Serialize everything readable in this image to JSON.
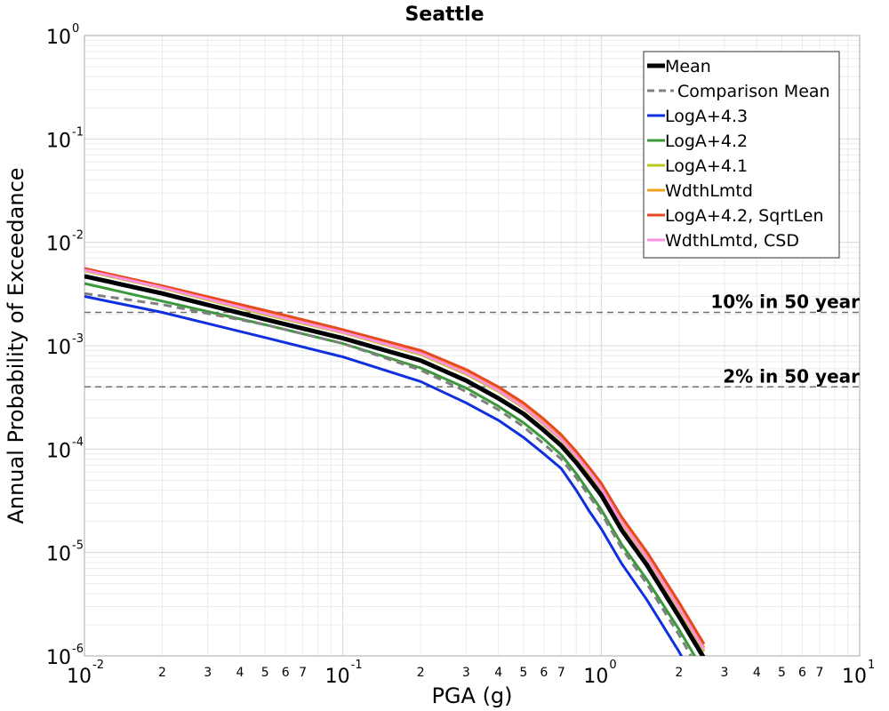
{
  "chart_data": {
    "type": "line",
    "title": "Seattle",
    "xlabel": "PGA (g)",
    "ylabel": "Annual Probability of Exceedance",
    "xscale": "log",
    "yscale": "log",
    "xlim": [
      0.01,
      10
    ],
    "ylim": [
      1e-06,
      1
    ],
    "grid": true,
    "legend_position": "top-right",
    "x_ticks": [
      {
        "base": "10",
        "exp": "-2"
      },
      {
        "base": "10",
        "exp": "-1"
      },
      {
        "base": "10",
        "exp": "0"
      },
      {
        "base": "10",
        "exp": "1"
      }
    ],
    "x_minor_labels": [
      "2",
      "3",
      "4",
      "5",
      "6",
      "7"
    ],
    "y_ticks": [
      {
        "base": "10",
        "exp": "0"
      },
      {
        "base": "10",
        "exp": "-1"
      },
      {
        "base": "10",
        "exp": "-2"
      },
      {
        "base": "10",
        "exp": "-3"
      },
      {
        "base": "10",
        "exp": "-4"
      },
      {
        "base": "10",
        "exp": "-5"
      },
      {
        "base": "10",
        "exp": "-6"
      }
    ],
    "reference_lines": [
      {
        "label": "10% in 50 year",
        "y": 0.0021
      },
      {
        "label": "2% in 50 year",
        "y": 0.0004
      }
    ],
    "series": [
      {
        "name": "LogA+4.3",
        "color": "#1030e0",
        "dashed": false,
        "width": 3,
        "x": [
          0.01,
          0.02,
          0.05,
          0.1,
          0.2,
          0.3,
          0.4,
          0.5,
          0.6,
          0.7,
          0.8,
          0.9,
          1.0,
          1.2,
          1.5,
          2.0,
          2.5
        ],
        "y": [
          0.003,
          0.0021,
          0.0012,
          0.00078,
          0.00045,
          0.00028,
          0.00019,
          0.00013,
          9e-05,
          6.5e-05,
          4e-05,
          2.5e-05,
          1.7e-05,
          7.8e-06,
          3.5e-06,
          1.1e-06,
          4e-07
        ]
      },
      {
        "name": "LogA+4.2",
        "color": "#3a9a3a",
        "dashed": false,
        "width": 3,
        "x": [
          0.01,
          0.02,
          0.05,
          0.1,
          0.2,
          0.3,
          0.4,
          0.5,
          0.6,
          0.7,
          0.8,
          0.9,
          1.0,
          1.2,
          1.5,
          2.0,
          2.5
        ],
        "y": [
          0.004,
          0.0027,
          0.0016,
          0.00105,
          0.00061,
          0.00039,
          0.00026,
          0.00018,
          0.000125,
          8.8e-05,
          5.8e-05,
          3.8e-05,
          2.6e-05,
          1.2e-05,
          5.5e-06,
          1.8e-06,
          7e-07
        ]
      },
      {
        "name": "LogA+4.1",
        "color": "#b8c820",
        "dashed": false,
        "width": 3,
        "x": [
          0.01,
          0.02,
          0.05,
          0.1,
          0.2,
          0.3,
          0.4,
          0.5,
          0.6,
          0.7,
          0.8,
          0.9,
          1.0,
          1.2,
          1.5,
          2.0,
          2.5
        ],
        "y": [
          0.0053,
          0.0036,
          0.002,
          0.00133,
          0.00082,
          0.00053,
          0.00036,
          0.00025,
          0.000172,
          0.000122,
          8.4e-05,
          5.8e-05,
          4.1e-05,
          1.9e-05,
          8.8e-06,
          2.8e-06,
          1.1e-06
        ]
      },
      {
        "name": "WdthLmtd",
        "color": "#f0a020",
        "dashed": false,
        "width": 3,
        "x": [
          0.01,
          0.02,
          0.05,
          0.1,
          0.2,
          0.3,
          0.4,
          0.5,
          0.6,
          0.7,
          0.8,
          0.9,
          1.0,
          1.2,
          1.5,
          2.0,
          2.5
        ],
        "y": [
          0.0055,
          0.0037,
          0.0021,
          0.00138,
          0.00086,
          0.00056,
          0.00038,
          0.00026,
          0.00018,
          0.000128,
          8.8e-05,
          6.1e-05,
          4.3e-05,
          2e-05,
          9.2e-06,
          3e-06,
          1.2e-06
        ]
      },
      {
        "name": "LogA+4.2, SqrtLen",
        "color": "#e84a20",
        "dashed": false,
        "width": 3,
        "x": [
          0.01,
          0.02,
          0.05,
          0.1,
          0.2,
          0.3,
          0.4,
          0.5,
          0.6,
          0.7,
          0.8,
          0.9,
          1.0,
          1.2,
          1.5,
          2.0,
          2.5
        ],
        "y": [
          0.0056,
          0.0038,
          0.0022,
          0.00143,
          0.0009,
          0.00059,
          0.0004,
          0.00028,
          0.000195,
          0.000138,
          9.5e-05,
          6.6e-05,
          4.7e-05,
          2.2e-05,
          1.02e-05,
          3.3e-06,
          1.3e-06
        ]
      },
      {
        "name": "WdthLmtd, CSD",
        "color": "#ff90e0",
        "dashed": false,
        "width": 3,
        "x": [
          0.01,
          0.02,
          0.05,
          0.1,
          0.2,
          0.3,
          0.4,
          0.5,
          0.6,
          0.7,
          0.8,
          0.9,
          1.0,
          1.2,
          1.5,
          2.0,
          2.5
        ],
        "y": [
          0.0054,
          0.00365,
          0.00205,
          0.00135,
          0.00084,
          0.000545,
          0.00037,
          0.000255,
          0.000176,
          0.000125,
          8.6e-05,
          6e-05,
          4.2e-05,
          1.95e-05,
          9e-06,
          2.9e-06,
          1.15e-06
        ]
      },
      {
        "name": "Comparison Mean",
        "color": "#808080",
        "dashed": true,
        "width": 3,
        "x": [
          0.01,
          0.02,
          0.05,
          0.1,
          0.2,
          0.3,
          0.4,
          0.5,
          0.6,
          0.7,
          0.8,
          0.9,
          1.0,
          1.2,
          1.5,
          2.0,
          2.5
        ],
        "y": [
          0.0032,
          0.0025,
          0.0016,
          0.00105,
          0.00058,
          0.00036,
          0.00024,
          0.000165,
          0.000112,
          8e-05,
          5.3e-05,
          3.5e-05,
          2.4e-05,
          1.1e-05,
          5e-06,
          1.6e-06,
          6e-07
        ]
      },
      {
        "name": "Mean",
        "color": "#000000",
        "dashed": false,
        "width": 5,
        "x": [
          0.01,
          0.02,
          0.05,
          0.1,
          0.2,
          0.3,
          0.4,
          0.5,
          0.6,
          0.7,
          0.8,
          0.9,
          1.0,
          1.2,
          1.5,
          2.0,
          2.5
        ],
        "y": [
          0.0047,
          0.0032,
          0.0018,
          0.00118,
          0.00072,
          0.00046,
          0.00031,
          0.00022,
          0.000152,
          0.000108,
          7.4e-05,
          5.1e-05,
          3.6e-05,
          1.65e-05,
          7.6e-06,
          2.4e-06,
          9.5e-07
        ]
      }
    ],
    "legend_order": [
      "Mean",
      "Comparison Mean",
      "LogA+4.3",
      "LogA+4.2",
      "LogA+4.1",
      "WdthLmtd",
      "LogA+4.2, SqrtLen",
      "WdthLmtd, CSD"
    ]
  }
}
